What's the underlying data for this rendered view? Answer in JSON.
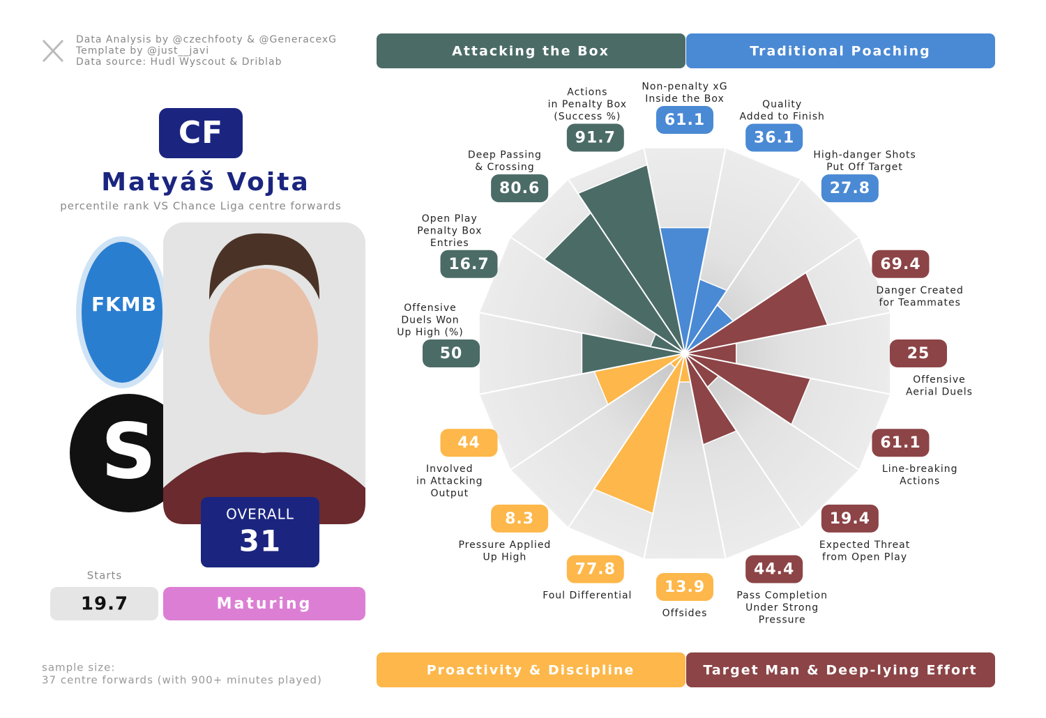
{
  "profile": {
    "credits": [
      "Data Analysis by @czechfooty & @GeneracexG",
      "Template by @just__javi",
      "Data source: Hudl Wyscout & Driblab"
    ],
    "position": "CF",
    "name": "Matyáš Vojta",
    "subtitle": "percentile rank VS Chance Liga centre forwards",
    "overall_label": "OVERALL",
    "overall": 31,
    "starts_label": "Starts",
    "starts": 19.7,
    "stage": "Maturing",
    "sample": [
      "sample size:",
      "37 centre forwards (with 900+ minutes played)"
    ]
  },
  "chart_data": {
    "type": "pizza",
    "ylim": [
      0,
      100
    ],
    "series": [
      {
        "name": "Traditional Poaching",
        "color": "#4a89d4",
        "categories": [
          [
            "Non-penalty xG",
            "Inside the Box"
          ],
          [
            "Quality",
            "Added to Finish"
          ],
          [
            "High-danger Shots",
            "Put Off Target"
          ]
        ],
        "values": [
          61.1,
          36.1,
          27.8
        ]
      },
      {
        "name": "Target Man & Deep-lying Effort",
        "color": "#8c4446",
        "categories": [
          [
            "Danger Created",
            "for Teammates"
          ],
          [
            "Offensive",
            "Aerial Duels"
          ],
          [
            "Line-breaking",
            "Actions"
          ],
          [
            "Expected Threat",
            "from Open Play"
          ],
          [
            "Pass Completion",
            "Under Strong",
            "Pressure"
          ]
        ],
        "values": [
          69.4,
          25,
          61.1,
          19.4,
          44.4
        ]
      },
      {
        "name": "Proactivity & Discipline",
        "color": "#fdb74a",
        "categories": [
          [
            "Offsides"
          ],
          [
            "Foul Differential"
          ],
          [
            "Pressure Applied",
            "Up High"
          ],
          [
            "Involved",
            "in Attacking",
            "Output"
          ]
        ],
        "values": [
          13.9,
          77.8,
          8.3,
          44
        ]
      },
      {
        "name": "Attacking the Box",
        "color": "#4b6b66",
        "categories": [
          [
            "Offensive",
            "Duels Won",
            "Up High (%)"
          ],
          [
            "Open Play",
            "Penalty Box",
            "Entries"
          ],
          [
            "Deep Passing",
            "& Crossing"
          ],
          [
            "Actions",
            "in Penalty Box",
            "(Success %)"
          ]
        ],
        "values": [
          50,
          16.7,
          80.6,
          91.7
        ]
      }
    ]
  }
}
